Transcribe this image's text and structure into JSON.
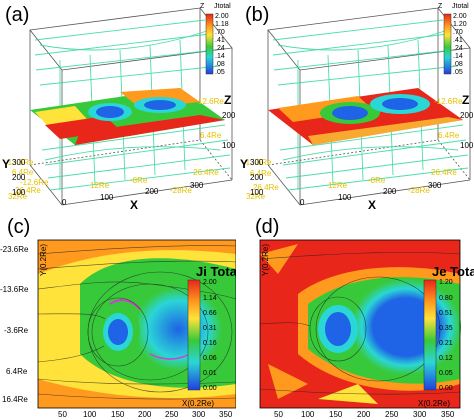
{
  "figure": {
    "panels": [
      {
        "id": "a",
        "label": "(a)",
        "type": "3d",
        "colorbar_title": "Jtotal",
        "colorbar_axis": "Z",
        "colorbar_ticks": [
          "2.00",
          "1.18",
          ".70",
          ".41",
          ".24",
          ".14",
          ".08",
          ".05"
        ],
        "axis_x": "X",
        "axis_y": "Y",
        "axis_z": "Z",
        "x_ticks": [
          "0",
          "100",
          "200",
          "300"
        ],
        "y_ticks": [
          "100",
          "200",
          "300"
        ],
        "z_ticks": [
          "100",
          "200"
        ],
        "re_labels": [
          "12.6Re",
          "6.4Re",
          "-13.6Re",
          "32Re",
          "-28Re",
          "-8Re",
          "12Re",
          "26.4Re",
          "-12.6Re",
          "6.4Re",
          "26.4Re"
        ]
      },
      {
        "id": "b",
        "label": "(b)",
        "type": "3d",
        "colorbar_title": "Jtotal",
        "colorbar_axis": "Z",
        "colorbar_ticks": [
          "2.00",
          "1.20",
          ".70",
          ".41",
          ".24",
          ".14",
          ".08",
          ".05"
        ],
        "axis_x": "X",
        "axis_y": "Y",
        "axis_z": "Z",
        "x_ticks": [
          "0",
          "100",
          "200",
          "300"
        ],
        "y_ticks": [
          "100",
          "200",
          "300"
        ],
        "z_ticks": [
          "100",
          "200"
        ],
        "re_labels": [
          "-12.6Re",
          "6.4Re",
          "26.4Re",
          "-28Re",
          "-8Re",
          "12Re",
          "32Re",
          "26.4Re",
          "6.4Re",
          "-13.6Re"
        ]
      },
      {
        "id": "c",
        "label": "(c)",
        "type": "2d",
        "colorbar_title": "Ji Total",
        "colorbar_ticks": [
          "2.00",
          "1.14",
          "0.66",
          "0.31",
          "0.16",
          "0.06",
          "0.01",
          "0.00"
        ],
        "y_axis_label": "Y(0.2Re)",
        "x_axis_label": "X(0.2Re)",
        "y_ticks": [
          "-23.6Re",
          "-13.6Re",
          "-3.6Re",
          "6.4Re",
          "16.4Re"
        ],
        "x_ticks": [
          "50",
          "100",
          "150",
          "200",
          "250",
          "300",
          "350"
        ]
      },
      {
        "id": "d",
        "label": "(d)",
        "type": "2d",
        "colorbar_title": "Je Total",
        "colorbar_ticks": [
          "1.20",
          "0.80",
          "0.51",
          "0.35",
          "0.21",
          "0.12",
          "0.05",
          "0.00"
        ],
        "y_axis_label": "Y(0.2Re)",
        "x_axis_label": "X(0.2Re)",
        "x_ticks": [
          "50",
          "100",
          "150",
          "200",
          "250",
          "300",
          "350"
        ]
      }
    ],
    "colors": {
      "red": "#e8261a",
      "orange": "#ff9a1e",
      "yellow": "#ffe23a",
      "green": "#38c93a",
      "cyan": "#2ad6d6",
      "blue": "#1f63e6",
      "darkblue": "#1a2fb8",
      "stream": "#22e07a",
      "magenta": "#d63ad6"
    }
  }
}
